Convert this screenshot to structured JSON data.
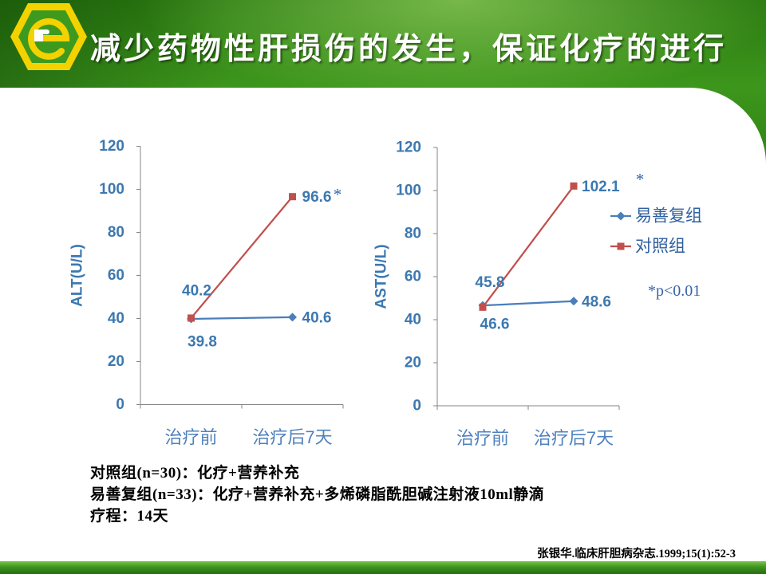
{
  "slide": {
    "title": "减少药物性肝损伤的发生，保证化疗的进行",
    "logo_icon": "e-hexagon-logo-icon",
    "footnote": "*p<0.01",
    "notes": [
      "对照组(n=30)：化疗+营养补充",
      "易善复组(n=33)：化疗+营养补充+多烯磷脂酰胆碱注射液10ml静滴",
      "疗程：14天"
    ],
    "citation": "张银华.临床肝胆病杂志.1999;15(1):52-3"
  },
  "colors": {
    "header_green": "#3a8f1c",
    "panel_background": "#ffffff",
    "title_text": "#ffffff",
    "axis_text": "#3c78b0",
    "category_text": "#4f81bd",
    "axis_line": "#868686",
    "legend_text": "#2e5f9e",
    "annotation_text": "#3763a8",
    "note_text": "#000000"
  },
  "chart_data": [
    {
      "type": "line",
      "ylabel": "ALT(U/L)",
      "categories": [
        "治疗前",
        "治疗后7天"
      ],
      "ylim": [
        0,
        120
      ],
      "yticks": [
        0,
        20,
        40,
        60,
        80,
        100,
        120
      ],
      "grid": false,
      "data_labels": true,
      "series": [
        {
          "name": "易善复组",
          "values": [
            39.8,
            40.6
          ],
          "color": "#4a7ebb",
          "marker": "diamond"
        },
        {
          "name": "对照组",
          "values": [
            40.2,
            96.6
          ],
          "color": "#c0504d",
          "marker": "square"
        }
      ],
      "annotation": "*"
    },
    {
      "type": "line",
      "ylabel": "AST(U/L)",
      "categories": [
        "治疗前",
        "治疗后7天"
      ],
      "ylim": [
        0,
        120
      ],
      "yticks": [
        0,
        20,
        40,
        60,
        80,
        100,
        120
      ],
      "grid": false,
      "data_labels": true,
      "legend": "right",
      "series": [
        {
          "name": "易善复组",
          "values": [
            46.6,
            48.6
          ],
          "color": "#4a7ebb",
          "marker": "diamond"
        },
        {
          "name": "对照组",
          "values": [
            45.8,
            102.1
          ],
          "color": "#c0504d",
          "marker": "square"
        }
      ],
      "annotation": "*"
    }
  ]
}
